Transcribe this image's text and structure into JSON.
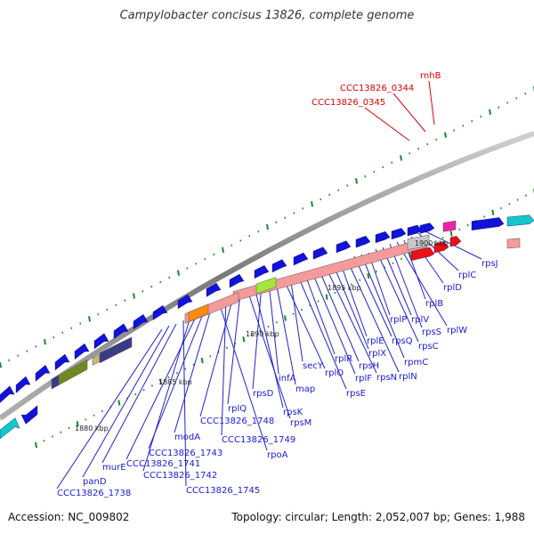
{
  "title": "Campylobacter concisus 13826, complete genome",
  "footer": {
    "accession": "Accession: NC_009802",
    "summary": "Topology: circular; Length: 2,052,007 bp; Genes: 1,988"
  },
  "colors": {
    "backbone": "#8a8a8a",
    "forward_gene": "#1212d8",
    "forward_ribosomal": "#f59a9a",
    "rna_label": "#dd0000",
    "gene_label": "#1a1ad8",
    "tick": "#1b8a2a",
    "cyan": "#13c8c8",
    "olive": "#6f8a1e",
    "orange": "#ff8a10",
    "lime": "#a6e63a",
    "slate": "#3a3a88",
    "magenta": "#ee22aa",
    "red": "#ee1010",
    "gray_box": "#c8c8cc"
  },
  "kbp_labels": [
    "1880 kbp",
    "1885 kbp",
    "1890 kbp",
    "1895 kbp",
    "1900 kbp"
  ],
  "red_labels": [
    "rnhB",
    "CCC13826_0344",
    "CCC13826_0345"
  ],
  "gene_labels": [
    "rpsJ",
    "rplC",
    "rplD",
    "rplB",
    "rplW",
    "rpsS",
    "rplV",
    "rpsC",
    "rplP",
    "rpmC",
    "rpsQ",
    "rplN",
    "rplE",
    "rplX",
    "rpsN",
    "rpsH",
    "rplF",
    "rplR",
    "rpsE",
    "secY",
    "rplO",
    "map",
    "infA",
    "rpsD",
    "rpsK",
    "rpsM",
    "rplQ",
    "CCC13826_1748",
    "CCC13826_1749",
    "rpoA",
    "modA",
    "CCC13826_1743",
    "CCC13826_1741",
    "CCC13826_1742",
    "CCC13826_1745",
    "murE",
    "panD",
    "CCC13826_1738"
  ]
}
